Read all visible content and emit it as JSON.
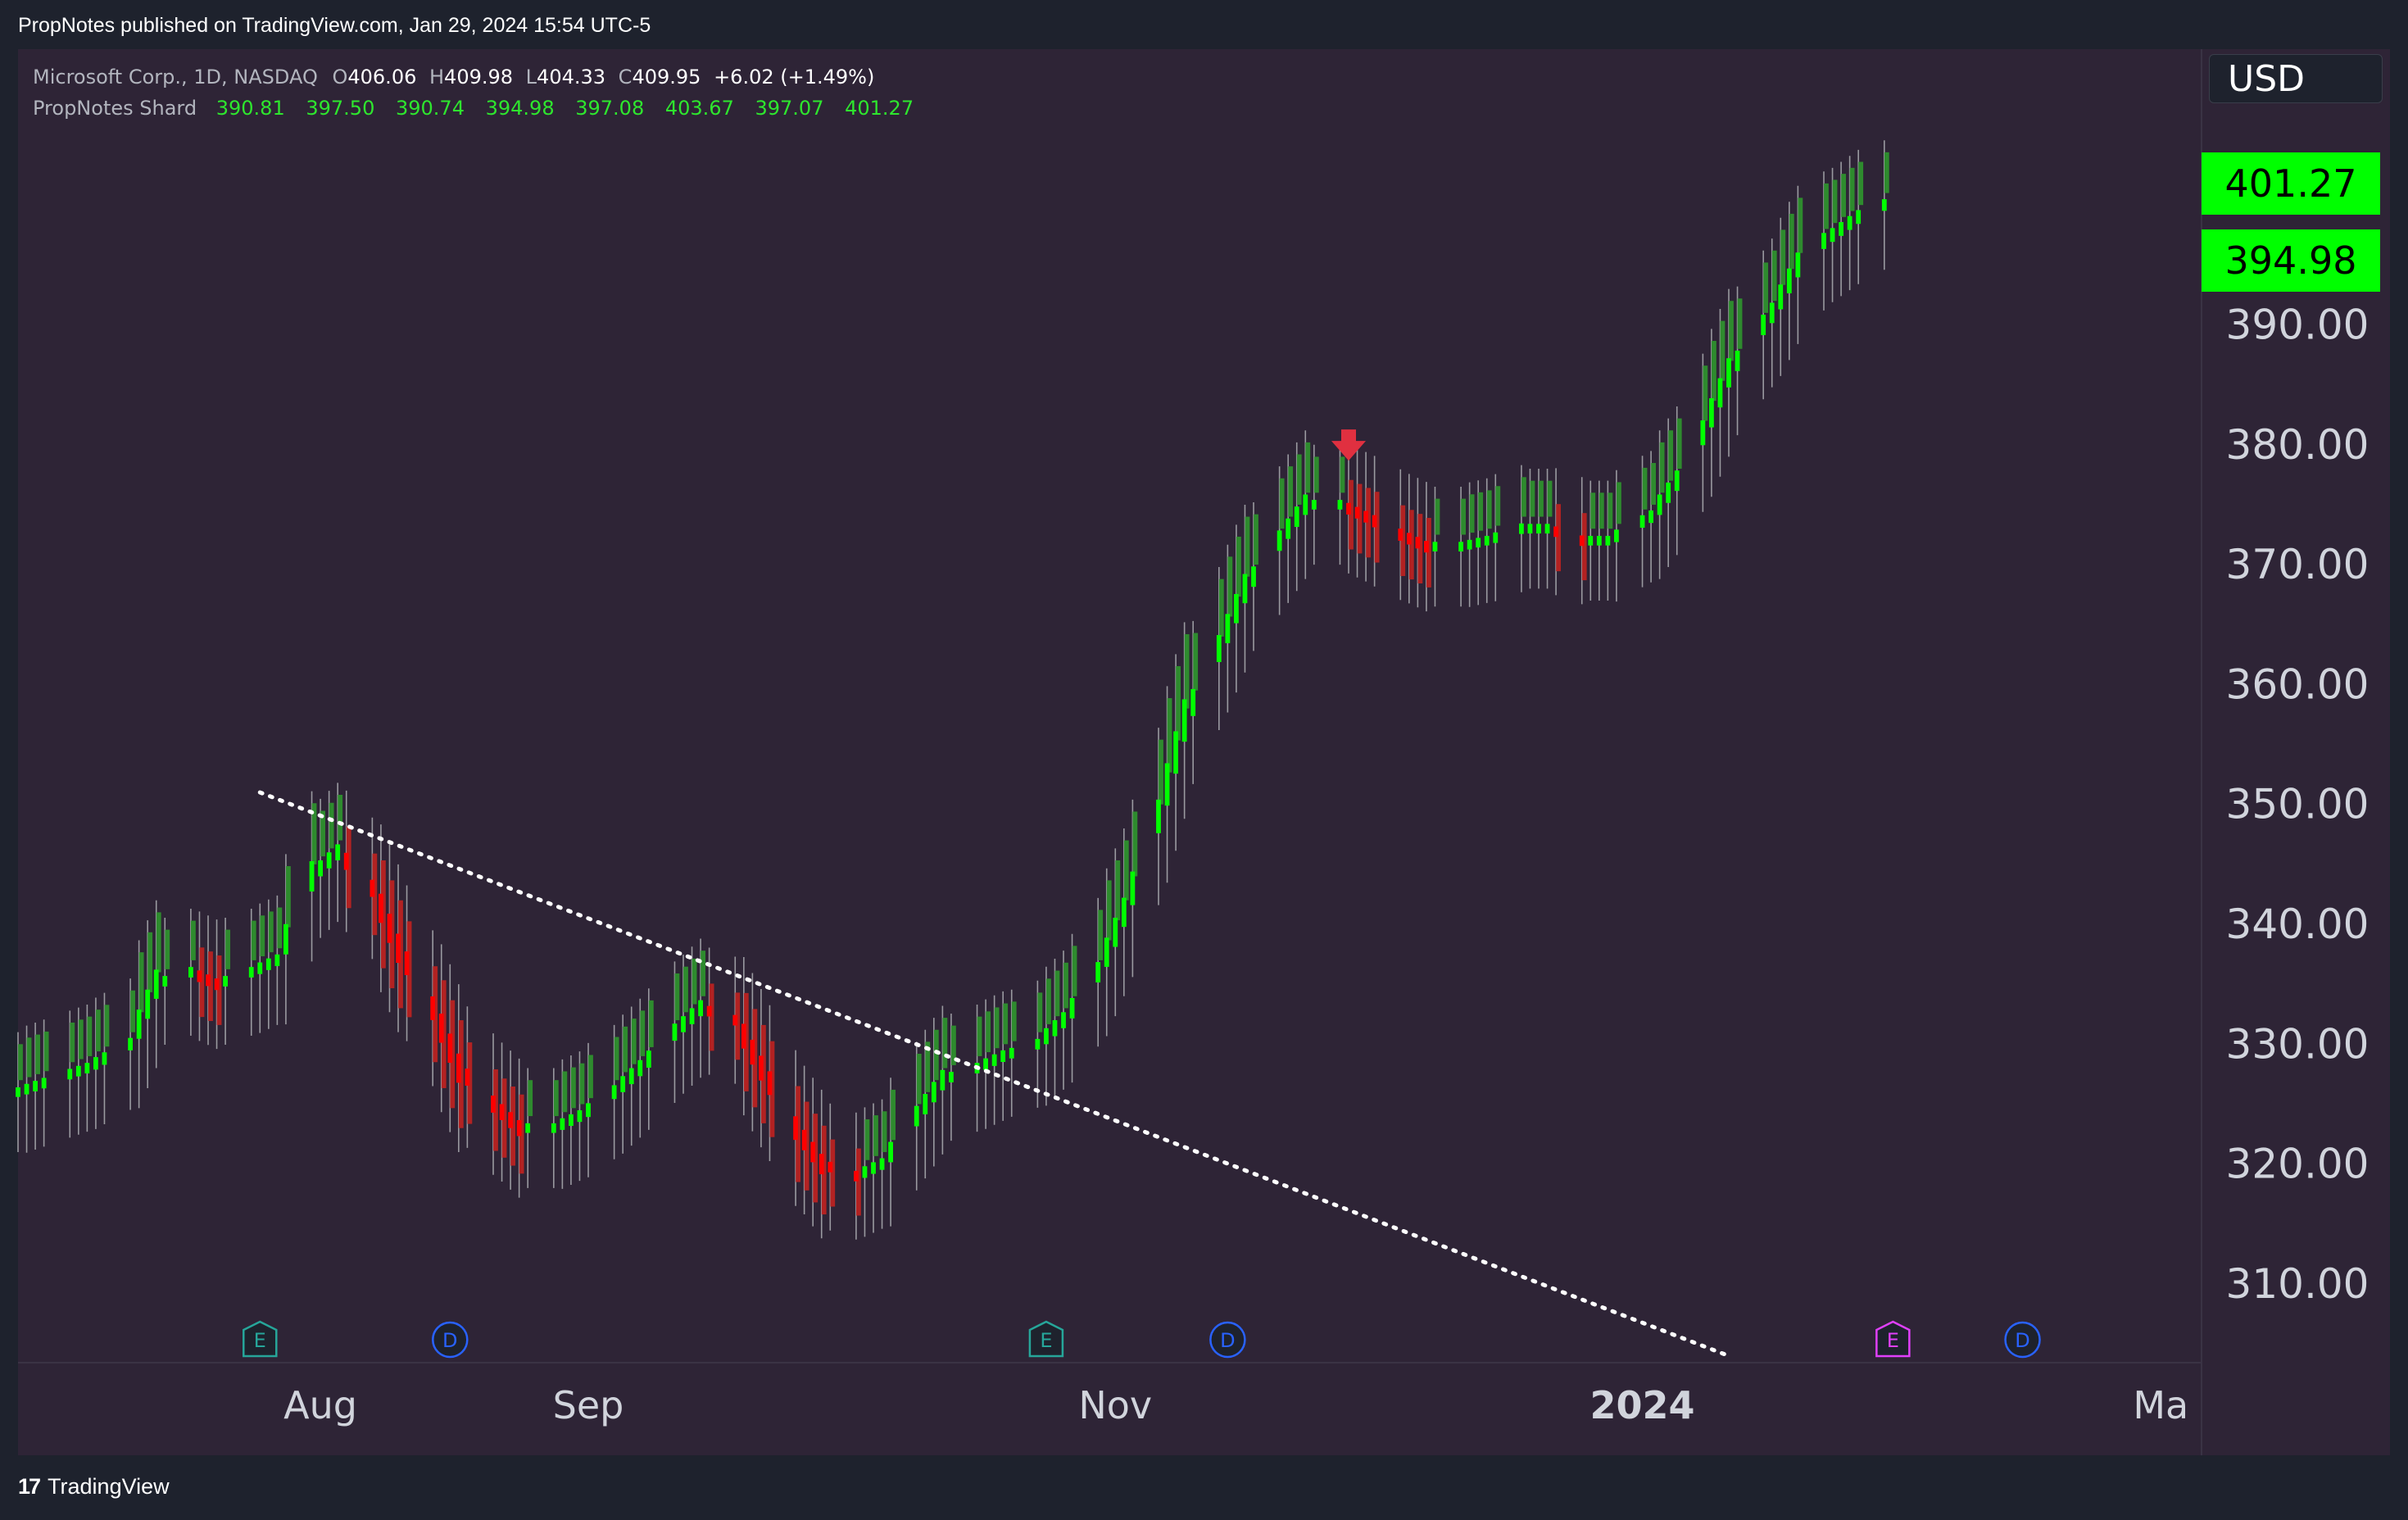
{
  "header": {
    "published": "PropNotes published on TradingView.com, Jan 29, 2024 15:54 UTC-5"
  },
  "legend": {
    "symbol": "Microsoft Corp., 1D, NASDAQ",
    "o_label": "O",
    "o_value": "406.06",
    "h_label": "H",
    "h_value": "409.98",
    "l_label": "L",
    "l_value": "404.33",
    "c_label": "C",
    "c_value": "409.95",
    "change": "+6.02 (+1.49%)",
    "indicator_name": "PropNotes Shard",
    "indicator_values": [
      "390.81",
      "397.50",
      "390.74",
      "394.98",
      "397.08",
      "403.67",
      "397.07",
      "401.27"
    ]
  },
  "currency": "USD",
  "price_tags": [
    "401.27",
    "394.98"
  ],
  "footer": {
    "logo_glyph": "17",
    "brand": "TradingView"
  },
  "colors": {
    "background": "#2e2436",
    "up_bright": "#00ff00",
    "up_dark": "#2e8b2e",
    "down_bright": "#ff0000",
    "down_dark": "#b22222",
    "wick": "#9a9aa0",
    "trendline": "#ffffff",
    "signal_arrow": "#e03040"
  },
  "chart_data": {
    "type": "candlestick",
    "y_axis": {
      "ticks": [
        310,
        320,
        330,
        340,
        350,
        360,
        370,
        380,
        390
      ],
      "tick_labels": [
        "310.00",
        "320.00",
        "330.00",
        "340.00",
        "350.00",
        "360.00",
        "370.00",
        "380.00",
        "390.00"
      ],
      "range": [
        303.5,
        413
      ]
    },
    "x_axis": {
      "labels": [
        "Aug",
        "Sep",
        "Nov",
        "2024",
        "Ma"
      ],
      "label_dates": [
        "2023-08-01",
        "2023-09-01",
        "2023-11-01",
        "2024-01-01",
        "2024-03-01"
      ],
      "range": [
        "2023-06-27",
        "2024-03-06"
      ]
    },
    "indicator_series": [
      [
        "2023-06-27",
        326
      ],
      [
        "2023-07-05",
        328
      ],
      [
        "2023-07-10",
        330
      ],
      [
        "2023-07-13",
        335
      ],
      [
        "2023-07-17",
        336
      ],
      [
        "2023-07-20",
        335
      ],
      [
        "2023-07-24",
        336
      ],
      [
        "2023-07-27",
        337
      ],
      [
        "2023-07-31",
        344
      ],
      [
        "2023-08-03",
        346
      ],
      [
        "2023-08-07",
        343
      ],
      [
        "2023-08-10",
        338
      ],
      [
        "2023-08-14",
        333
      ],
      [
        "2023-08-17",
        328
      ],
      [
        "2023-08-21",
        325
      ],
      [
        "2023-08-24",
        323
      ],
      [
        "2023-08-28",
        323
      ],
      [
        "2023-08-31",
        324
      ],
      [
        "2023-09-04",
        326
      ],
      [
        "2023-09-07",
        328
      ],
      [
        "2023-09-11",
        331
      ],
      [
        "2023-09-14",
        333
      ],
      [
        "2023-09-18",
        332
      ],
      [
        "2023-09-21",
        328
      ],
      [
        "2023-09-25",
        323
      ],
      [
        "2023-09-28",
        320
      ],
      [
        "2023-10-02",
        319
      ],
      [
        "2023-10-05",
        320
      ],
      [
        "2023-10-09",
        324
      ],
      [
        "2023-10-12",
        327
      ],
      [
        "2023-10-16",
        328
      ],
      [
        "2023-10-19",
        329
      ],
      [
        "2023-10-23",
        330
      ],
      [
        "2023-10-26",
        332
      ],
      [
        "2023-10-30",
        336
      ],
      [
        "2023-11-02",
        341
      ],
      [
        "2023-11-06",
        349
      ],
      [
        "2023-11-09",
        357
      ],
      [
        "2023-11-13",
        363
      ],
      [
        "2023-11-16",
        368
      ],
      [
        "2023-11-20",
        372
      ],
      [
        "2023-11-23",
        375
      ],
      [
        "2023-11-27",
        375
      ],
      [
        "2023-11-30",
        374
      ],
      [
        "2023-12-04",
        372.5
      ],
      [
        "2023-12-07",
        371.5
      ],
      [
        "2023-12-11",
        371.5
      ],
      [
        "2023-12-14",
        372
      ],
      [
        "2023-12-18",
        373
      ],
      [
        "2023-12-21",
        373
      ],
      [
        "2023-12-25",
        372
      ],
      [
        "2023-12-28",
        372
      ],
      [
        "2024-01-02",
        374
      ],
      [
        "2024-01-05",
        377
      ],
      [
        "2024-01-08",
        381
      ],
      [
        "2024-01-11",
        386
      ],
      [
        "2024-01-16",
        391
      ],
      [
        "2024-01-19",
        395
      ],
      [
        "2024-01-22",
        397
      ],
      [
        "2024-01-26",
        399
      ],
      [
        "2024-01-29",
        400
      ]
    ],
    "markers": [
      {
        "label": "E",
        "date": "2023-07-25",
        "color": "#26a69a"
      },
      {
        "label": "D",
        "date": "2023-08-16",
        "color": "#2962ff"
      },
      {
        "label": "E",
        "date": "2023-10-24",
        "color": "#26a69a"
      },
      {
        "label": "D",
        "date": "2023-11-14",
        "color": "#2962ff"
      },
      {
        "label": "E",
        "date": "2024-01-30",
        "color": "#e040fb"
      },
      {
        "label": "D",
        "date": "2024-02-14",
        "color": "#2962ff"
      }
    ],
    "trendline": {
      "start": [
        "2023-07-25",
        351
      ],
      "end": [
        "2024-01-11",
        304
      ],
      "style": "dotted"
    },
    "signal": {
      "type": "down-arrow",
      "date": "2023-11-28",
      "price": 379.5
    }
  }
}
